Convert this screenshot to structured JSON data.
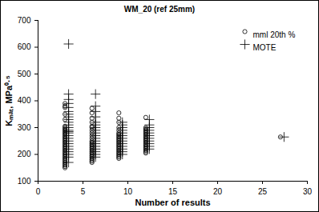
{
  "chart_data": {
    "type": "scatter",
    "title": "WM_20 (ref 25mm)",
    "x_label": "Number of results",
    "y_label": "Kₘₐₜ, MPa⁰·⁵",
    "xlim": [
      0,
      30
    ],
    "xticks": [
      0,
      5,
      10,
      15,
      20,
      25,
      30
    ],
    "ylim": [
      100,
      700
    ],
    "yticks": [
      100,
      200,
      300,
      400,
      500,
      600,
      700
    ],
    "grid": false,
    "legend": "top-right",
    "series": [
      {
        "name": "mml 20th %",
        "marker": "circle",
        "color": "#000000",
        "x": [
          3,
          3,
          3,
          3,
          3,
          3,
          3,
          3,
          3,
          3,
          3,
          3,
          3,
          3,
          3,
          3,
          3,
          3,
          3,
          3,
          3,
          3,
          3,
          3,
          3,
          3,
          3,
          3,
          3,
          3,
          3,
          3,
          3,
          3,
          3,
          3,
          3,
          6,
          6,
          6,
          6,
          6,
          6,
          6,
          6,
          6,
          6,
          6,
          6,
          6,
          6,
          6,
          6,
          6,
          6,
          6,
          6,
          6,
          6,
          6,
          6,
          6,
          6,
          6,
          9,
          9,
          9,
          9,
          9,
          9,
          9,
          9,
          9,
          9,
          9,
          9,
          9,
          9,
          9,
          9,
          9,
          9,
          9,
          9,
          9,
          9,
          9,
          9,
          9,
          12,
          12,
          12,
          12,
          12,
          12,
          12,
          12,
          12,
          12,
          12,
          12,
          12,
          12,
          12,
          12,
          12,
          12,
          12,
          12,
          12,
          27
        ],
        "values": [
          390,
          380,
          375,
          350,
          330,
          305,
          300,
          295,
          290,
          285,
          280,
          275,
          270,
          265,
          260,
          255,
          250,
          245,
          240,
          235,
          230,
          225,
          220,
          215,
          210,
          205,
          200,
          195,
          190,
          185,
          180,
          175,
          170,
          165,
          160,
          155,
          150,
          372,
          355,
          335,
          320,
          305,
          300,
          290,
          280,
          270,
          260,
          250,
          245,
          240,
          235,
          230,
          225,
          220,
          215,
          210,
          205,
          200,
          195,
          190,
          185,
          180,
          175,
          170,
          355,
          335,
          320,
          300,
          290,
          280,
          275,
          270,
          265,
          260,
          255,
          250,
          245,
          240,
          235,
          230,
          225,
          220,
          215,
          210,
          205,
          200,
          195,
          190,
          185,
          338,
          300,
          295,
          290,
          285,
          280,
          275,
          270,
          265,
          260,
          255,
          250,
          245,
          240,
          235,
          230,
          225,
          220,
          215,
          210,
          205,
          265
        ]
      },
      {
        "name": "MOTE",
        "marker": "plus",
        "color": "#000000",
        "x": [
          3.4,
          3.4,
          3.4,
          3.4,
          3.4,
          3.4,
          3.4,
          3.4,
          3.4,
          3.4,
          3.4,
          3.4,
          3.4,
          3.4,
          3.4,
          3.4,
          3.4,
          3.4,
          3.4,
          3.4,
          3.4,
          3.4,
          3.4,
          3.4,
          3.4,
          6.4,
          6.4,
          6.4,
          6.4,
          6.4,
          6.4,
          6.4,
          6.4,
          6.4,
          6.4,
          6.4,
          6.4,
          6.4,
          6.4,
          6.4,
          6.4,
          6.4,
          6.4,
          9.4,
          9.4,
          9.4,
          9.4,
          9.4,
          9.4,
          9.4,
          9.4,
          9.4,
          9.4,
          9.4,
          9.4,
          9.4,
          12.4,
          12.4,
          12.4,
          12.4,
          12.4,
          12.4,
          12.4,
          12.4,
          12.4,
          12.4,
          12.4,
          27.4
        ],
        "values": [
          612,
          425,
          405,
          390,
          375,
          360,
          350,
          340,
          330,
          320,
          310,
          300,
          290,
          285,
          280,
          270,
          260,
          250,
          240,
          230,
          220,
          210,
          200,
          190,
          170,
          425,
          380,
          360,
          340,
          320,
          310,
          300,
          290,
          280,
          270,
          260,
          250,
          240,
          230,
          220,
          210,
          200,
          190,
          320,
          310,
          300,
          290,
          280,
          270,
          260,
          250,
          240,
          230,
          220,
          210,
          200,
          330,
          310,
          300,
          290,
          280,
          270,
          260,
          250,
          240,
          230,
          220,
          265
        ]
      }
    ]
  }
}
